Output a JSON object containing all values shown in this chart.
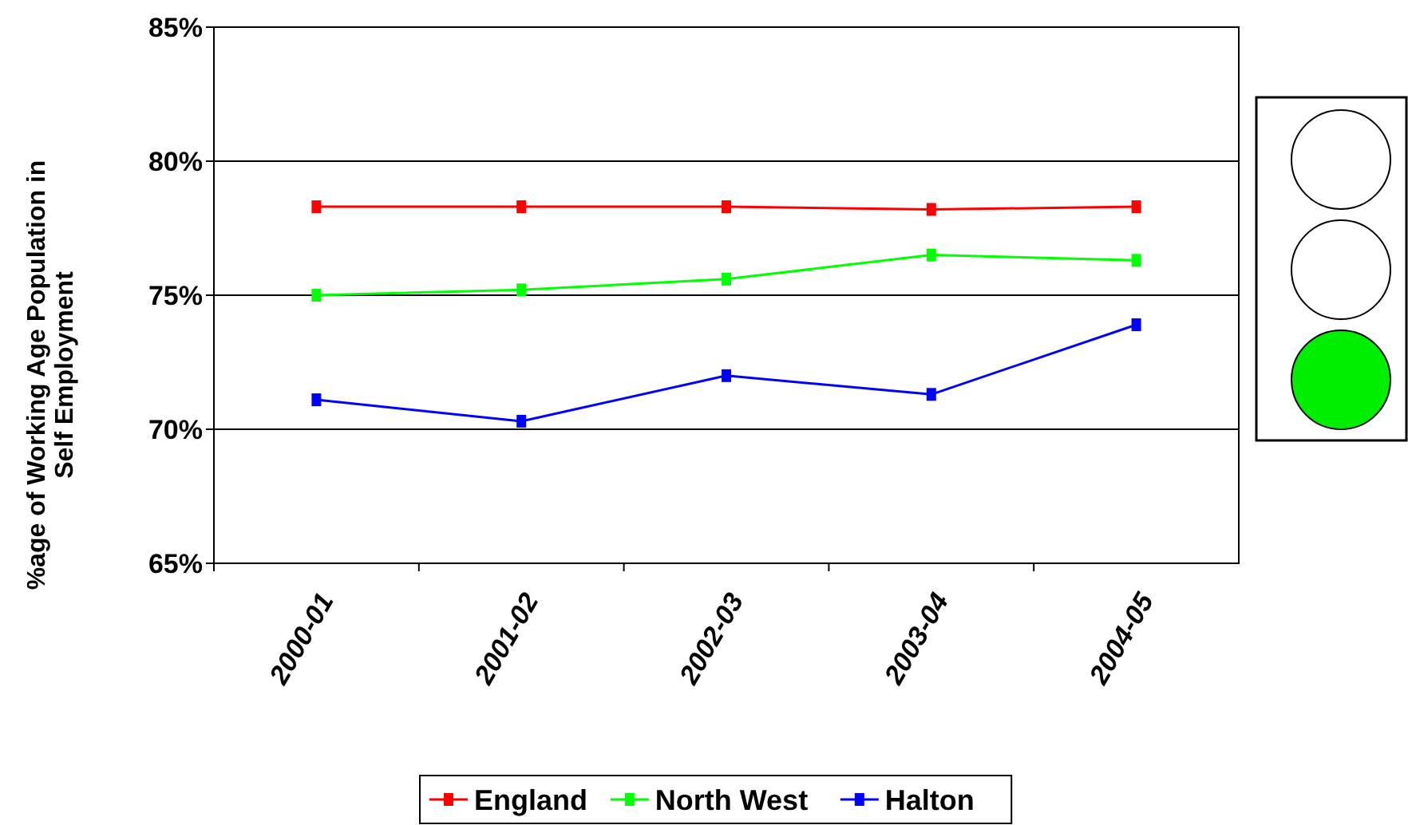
{
  "chart_data": {
    "type": "line",
    "ylabel": "%age of Working Age Population in Self Employment",
    "categories": [
      "2000-01",
      "2001-02",
      "2002-03",
      "2003-04",
      "2004-05"
    ],
    "series": [
      {
        "name": "England",
        "color": "#ff0000",
        "values": [
          78.3,
          78.3,
          78.3,
          78.2,
          78.3
        ]
      },
      {
        "name": "North West",
        "color": "#00ff00",
        "values": [
          75.0,
          75.2,
          75.6,
          76.5,
          76.3
        ]
      },
      {
        "name": "Halton",
        "color": "#0000ff",
        "values": [
          71.1,
          70.3,
          72.0,
          71.3,
          73.9
        ]
      }
    ],
    "ylim": [
      65,
      85
    ],
    "yticks": [
      {
        "value": 65,
        "label": "65%"
      },
      {
        "value": 70,
        "label": "70%"
      },
      {
        "value": 75,
        "label": "75%"
      },
      {
        "value": 80,
        "label": "80%"
      },
      {
        "value": 85,
        "label": "85%"
      }
    ],
    "grid": "y",
    "legend": "bottom",
    "marker": "square"
  }
}
